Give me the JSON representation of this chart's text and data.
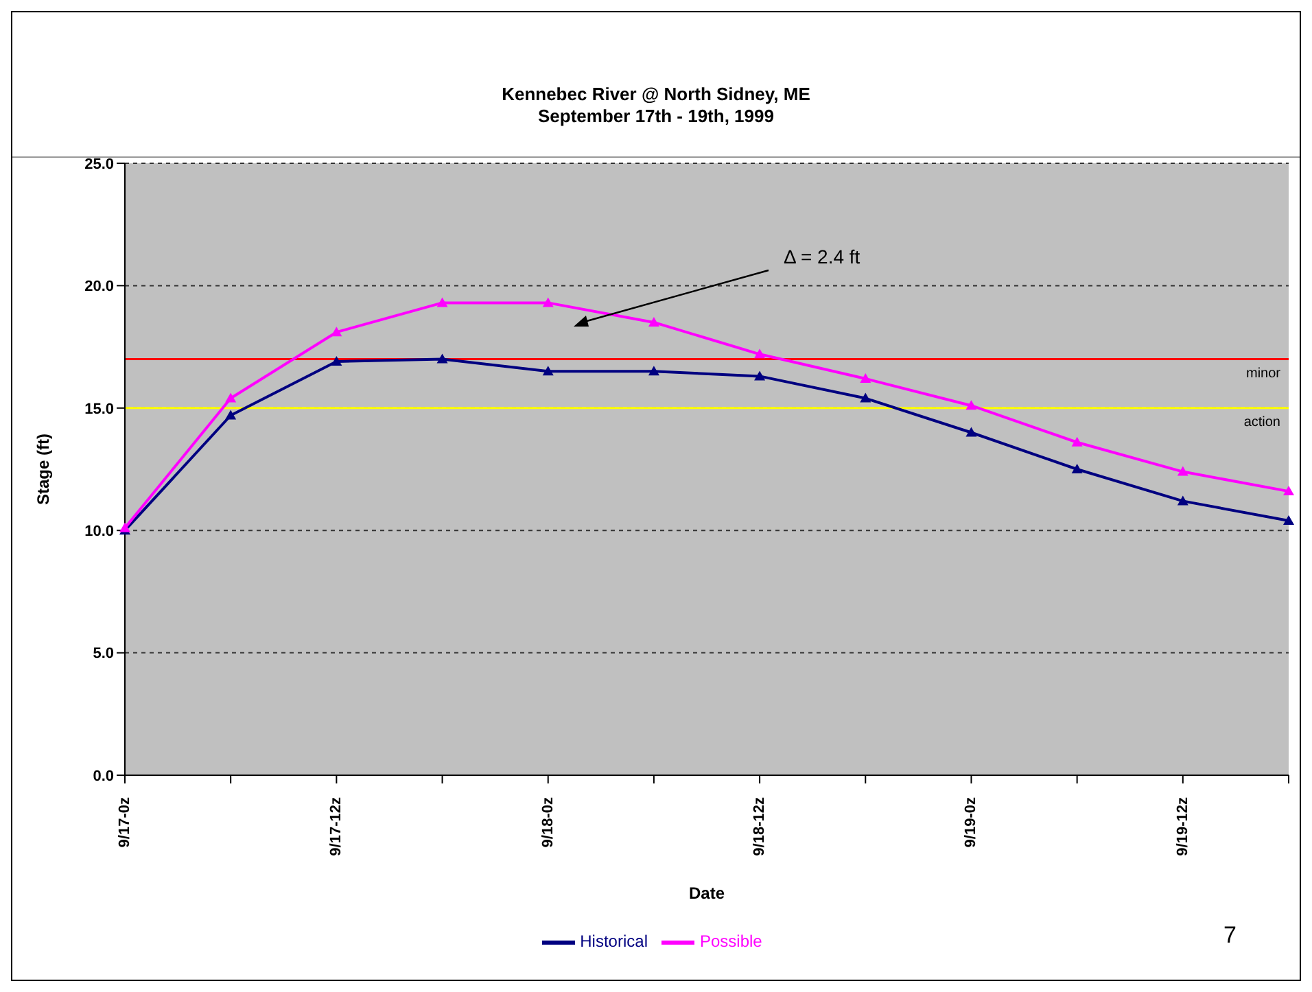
{
  "chart_data": {
    "type": "line",
    "title": "Kennebec River @ North Sidney, ME",
    "subtitle": "September 17th - 19th, 1999",
    "xlabel": "Date",
    "ylabel": "Stage (ft)",
    "categories": [
      "9/17-0z",
      null,
      "9/17-12z",
      null,
      "9/18-0z",
      null,
      "9/18-12z",
      null,
      "9/19-0z",
      null,
      "9/19-12z",
      null
    ],
    "series": [
      {
        "name": "Historical",
        "color": "#000080",
        "values": [
          10.0,
          14.7,
          16.9,
          17.0,
          16.5,
          16.5,
          16.3,
          15.4,
          14.0,
          12.5,
          11.2,
          10.4
        ]
      },
      {
        "name": "Possible",
        "color": "#ff00ff",
        "values": [
          10.1,
          15.4,
          18.1,
          19.3,
          19.3,
          18.5,
          17.2,
          16.2,
          15.1,
          13.6,
          12.4,
          11.6
        ]
      }
    ],
    "ylim": [
      0,
      25
    ],
    "yticks": [
      {
        "value": 0,
        "label": "0.0"
      },
      {
        "value": 5,
        "label": "5.0"
      },
      {
        "value": 10,
        "label": "10.0"
      },
      {
        "value": 15,
        "label": "15.0"
      },
      {
        "value": 20,
        "label": "20.0"
      },
      {
        "value": 25,
        "label": "25.0"
      }
    ],
    "ref_lines": [
      {
        "axis": "y",
        "value": 17.0,
        "label": "minor",
        "color": "#ff0000"
      },
      {
        "axis": "y",
        "value": 15.0,
        "label": "action",
        "color": "#ffff00"
      }
    ],
    "annotations": [
      "Δ = 2.4 ft",
      "7"
    ],
    "grid": "y",
    "legend": "bottom",
    "marker": "triangle",
    "line_style": "solid"
  }
}
